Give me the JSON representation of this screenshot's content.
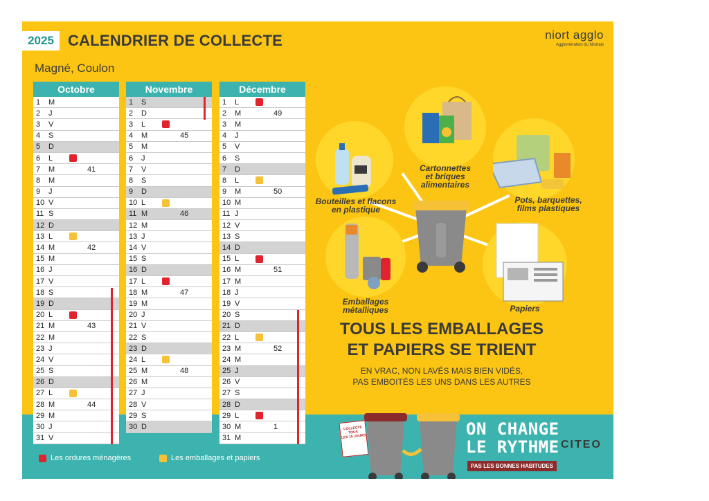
{
  "header": {
    "year": "2025",
    "title": "CALENDRIER DE COLLECTE",
    "commune": "Magné, Coulon"
  },
  "logo": {
    "name": "niort agglo",
    "subtitle": "Agglomération du Niortais"
  },
  "months": [
    {
      "name": "Octobre",
      "days": [
        {
          "d": "1",
          "l": "M"
        },
        {
          "d": "2",
          "l": "J"
        },
        {
          "d": "3",
          "l": "V"
        },
        {
          "d": "4",
          "l": "S"
        },
        {
          "d": "5",
          "l": "D",
          "weekend": true
        },
        {
          "d": "6",
          "l": "L",
          "marker": "red"
        },
        {
          "d": "7",
          "l": "M",
          "week": "41"
        },
        {
          "d": "8",
          "l": "M"
        },
        {
          "d": "9",
          "l": "J"
        },
        {
          "d": "10",
          "l": "V"
        },
        {
          "d": "11",
          "l": "S"
        },
        {
          "d": "12",
          "l": "D",
          "weekend": true
        },
        {
          "d": "13",
          "l": "L",
          "marker": "yellow"
        },
        {
          "d": "14",
          "l": "M",
          "week": "42"
        },
        {
          "d": "15",
          "l": "M"
        },
        {
          "d": "16",
          "l": "J"
        },
        {
          "d": "17",
          "l": "V"
        },
        {
          "d": "18",
          "l": "S"
        },
        {
          "d": "19",
          "l": "D",
          "weekend": true
        },
        {
          "d": "20",
          "l": "L",
          "marker": "red"
        },
        {
          "d": "21",
          "l": "M",
          "week": "43"
        },
        {
          "d": "22",
          "l": "M"
        },
        {
          "d": "23",
          "l": "J"
        },
        {
          "d": "24",
          "l": "V"
        },
        {
          "d": "25",
          "l": "S"
        },
        {
          "d": "26",
          "l": "D",
          "weekend": true
        },
        {
          "d": "27",
          "l": "L",
          "marker": "yellow"
        },
        {
          "d": "28",
          "l": "M",
          "week": "44"
        },
        {
          "d": "29",
          "l": "M"
        },
        {
          "d": "30",
          "l": "J"
        },
        {
          "d": "31",
          "l": "V"
        }
      ]
    },
    {
      "name": "Novembre",
      "days": [
        {
          "d": "1",
          "l": "S",
          "weekend": true
        },
        {
          "d": "2",
          "l": "D"
        },
        {
          "d": "3",
          "l": "L",
          "marker": "red"
        },
        {
          "d": "4",
          "l": "M",
          "week": "45"
        },
        {
          "d": "5",
          "l": "M"
        },
        {
          "d": "6",
          "l": "J"
        },
        {
          "d": "7",
          "l": "V"
        },
        {
          "d": "8",
          "l": "S"
        },
        {
          "d": "9",
          "l": "D",
          "weekend": true
        },
        {
          "d": "10",
          "l": "L",
          "marker": "yellow"
        },
        {
          "d": "11",
          "l": "M",
          "week": "46",
          "weekend": true
        },
        {
          "d": "12",
          "l": "M"
        },
        {
          "d": "13",
          "l": "J"
        },
        {
          "d": "14",
          "l": "V"
        },
        {
          "d": "15",
          "l": "S"
        },
        {
          "d": "16",
          "l": "D",
          "weekend": true
        },
        {
          "d": "17",
          "l": "L",
          "marker": "red"
        },
        {
          "d": "18",
          "l": "M",
          "week": "47"
        },
        {
          "d": "19",
          "l": "M"
        },
        {
          "d": "20",
          "l": "J"
        },
        {
          "d": "21",
          "l": "V"
        },
        {
          "d": "22",
          "l": "S"
        },
        {
          "d": "23",
          "l": "D",
          "weekend": true
        },
        {
          "d": "24",
          "l": "L",
          "marker": "yellow"
        },
        {
          "d": "25",
          "l": "M",
          "week": "48"
        },
        {
          "d": "26",
          "l": "M"
        },
        {
          "d": "27",
          "l": "J"
        },
        {
          "d": "28",
          "l": "V"
        },
        {
          "d": "29",
          "l": "S"
        },
        {
          "d": "30",
          "l": "D",
          "weekend": true
        }
      ]
    },
    {
      "name": "Décembre",
      "days": [
        {
          "d": "1",
          "l": "L",
          "marker": "red"
        },
        {
          "d": "2",
          "l": "M",
          "week": "49"
        },
        {
          "d": "3",
          "l": "M"
        },
        {
          "d": "4",
          "l": "J"
        },
        {
          "d": "5",
          "l": "V"
        },
        {
          "d": "6",
          "l": "S"
        },
        {
          "d": "7",
          "l": "D",
          "weekend": true
        },
        {
          "d": "8",
          "l": "L",
          "marker": "yellow"
        },
        {
          "d": "9",
          "l": "M",
          "week": "50"
        },
        {
          "d": "10",
          "l": "M"
        },
        {
          "d": "11",
          "l": "J"
        },
        {
          "d": "12",
          "l": "V"
        },
        {
          "d": "13",
          "l": "S"
        },
        {
          "d": "14",
          "l": "D",
          "weekend": true
        },
        {
          "d": "15",
          "l": "L",
          "marker": "red"
        },
        {
          "d": "16",
          "l": "M",
          "week": "51"
        },
        {
          "d": "17",
          "l": "M"
        },
        {
          "d": "18",
          "l": "J"
        },
        {
          "d": "19",
          "l": "V"
        },
        {
          "d": "20",
          "l": "S"
        },
        {
          "d": "21",
          "l": "D",
          "weekend": true
        },
        {
          "d": "22",
          "l": "L",
          "marker": "yellow"
        },
        {
          "d": "23",
          "l": "M",
          "week": "52"
        },
        {
          "d": "24",
          "l": "M"
        },
        {
          "d": "25",
          "l": "J",
          "weekend": true
        },
        {
          "d": "26",
          "l": "V"
        },
        {
          "d": "27",
          "l": "S"
        },
        {
          "d": "28",
          "l": "D",
          "weekend": true
        },
        {
          "d": "29",
          "l": "L",
          "marker": "red"
        },
        {
          "d": "30",
          "l": "M",
          "week": "1"
        },
        {
          "d": "31",
          "l": "M"
        }
      ]
    }
  ],
  "legend": [
    {
      "label": "Les ordures ménagères",
      "color": "#e0232d"
    },
    {
      "label": "Les emballages et papiers",
      "color": "#f7c137"
    }
  ],
  "categories": {
    "cartonnettes": [
      "Cartonnettes",
      "et briques",
      "alimentaires"
    ],
    "bouteilles": [
      "Bouteilles et flacons",
      "en plastique"
    ],
    "pots": [
      "Pots, barquettes,",
      "films plastiques"
    ],
    "metalliques": [
      "Emballages",
      "métalliques"
    ],
    "papiers": [
      "Papiers"
    ]
  },
  "main_message": {
    "title": [
      "TOUS LES EMBALLAGES",
      "ET PAPIERS SE TRIENT"
    ],
    "subtitle": [
      "EN VRAC, NON LAVÉS MAIS BIEN VIDÉS,",
      "PAS EMBOITÉS LES UNS DANS LES AUTRES"
    ]
  },
  "footer": {
    "slogan": [
      "ON CHANGE",
      "LE RYTHME"
    ],
    "tagline": "PAS LES BONNES HABITUDES",
    "partner": "CITEO",
    "badge": [
      "COLLECTE",
      "TOUS",
      "LES 15 JOURS"
    ]
  },
  "colors": {
    "poster_bg": "#fcc514",
    "teal": "#3cb3ae",
    "red": "#e0232d",
    "yellow": "#f7c137"
  }
}
